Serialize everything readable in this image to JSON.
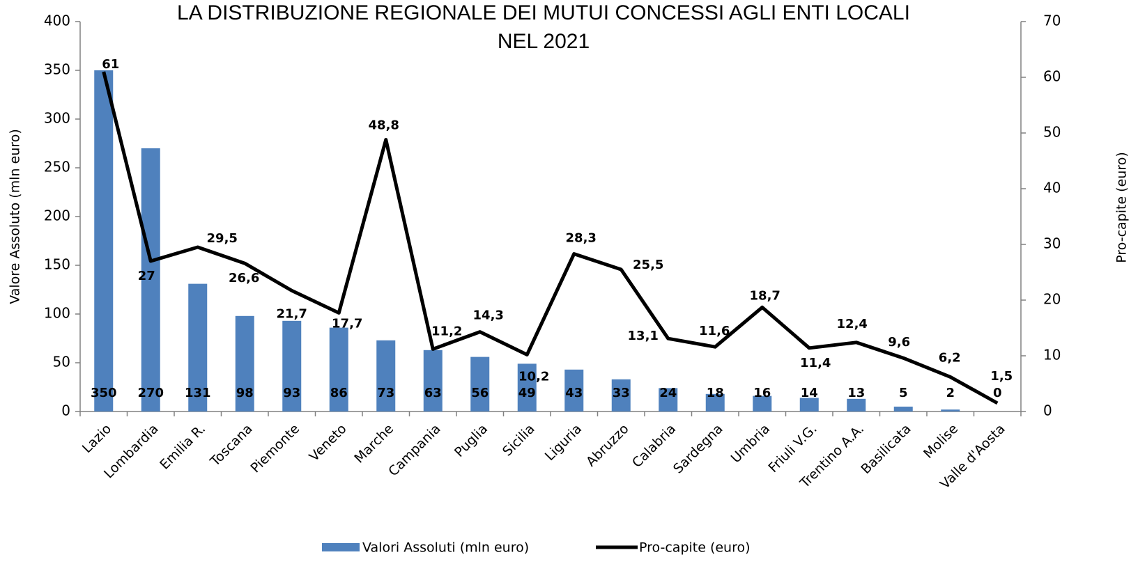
{
  "chart_data": {
    "type": "bar_line",
    "title": [
      "LA DISTRIBUZIONE REGIONALE DEI MUTUI CONCESSI AGLI ENTI LOCALI",
      "NEL 2021"
    ],
    "y_label": "Valore Assoluto (mln euro)",
    "y2_label": "Pro-capite (euro)",
    "categories": [
      "Lazio",
      "Lombardia",
      "Emilia R.",
      "Toscana",
      "Piemonte",
      "Veneto",
      "Marche",
      "Campania",
      "Puglia",
      "Sicilia",
      "Liguria",
      "Abruzzo",
      "Calabria",
      "Sardegna",
      "Umbria",
      "Friuli V.G.",
      "Trentino A.A.",
      "Basilicata",
      "Molise",
      "Valle d'Aosta"
    ],
    "series": [
      {
        "name": "Valori Assoluti (mln euro)",
        "type": "bar",
        "color": "#4f81bd",
        "values": [
          350,
          270,
          131,
          98,
          93,
          86,
          73,
          63,
          56,
          49,
          43,
          33,
          24,
          18,
          16,
          14,
          13,
          5,
          2,
          0
        ]
      },
      {
        "name": "Pro-capite (euro)",
        "type": "line",
        "color": "#000000",
        "axis": "y2",
        "values": [
          61,
          27,
          29.5,
          26.6,
          21.7,
          17.7,
          48.8,
          11.2,
          14.3,
          10.2,
          28.3,
          25.5,
          13.1,
          11.6,
          18.7,
          11.4,
          12.4,
          9.6,
          6.2,
          1.5
        ],
        "value_labels": [
          "61",
          "27",
          "29,5",
          "26,6",
          "21,7",
          "17,7",
          "48,8",
          "11,2",
          "14,3",
          "10,2",
          "28,3",
          "25,5",
          "13,1",
          "11,6",
          "18,7",
          "11,4",
          "12,4",
          "9,6",
          "6,2",
          "1,5"
        ]
      }
    ],
    "ylim": [
      0,
      400
    ],
    "yticks": [
      0,
      50,
      100,
      150,
      200,
      250,
      300,
      350,
      400
    ],
    "y2lim": [
      0,
      70
    ],
    "y2ticks": [
      0,
      10,
      20,
      30,
      40,
      50,
      60,
      70
    ],
    "legend": "bottom"
  }
}
